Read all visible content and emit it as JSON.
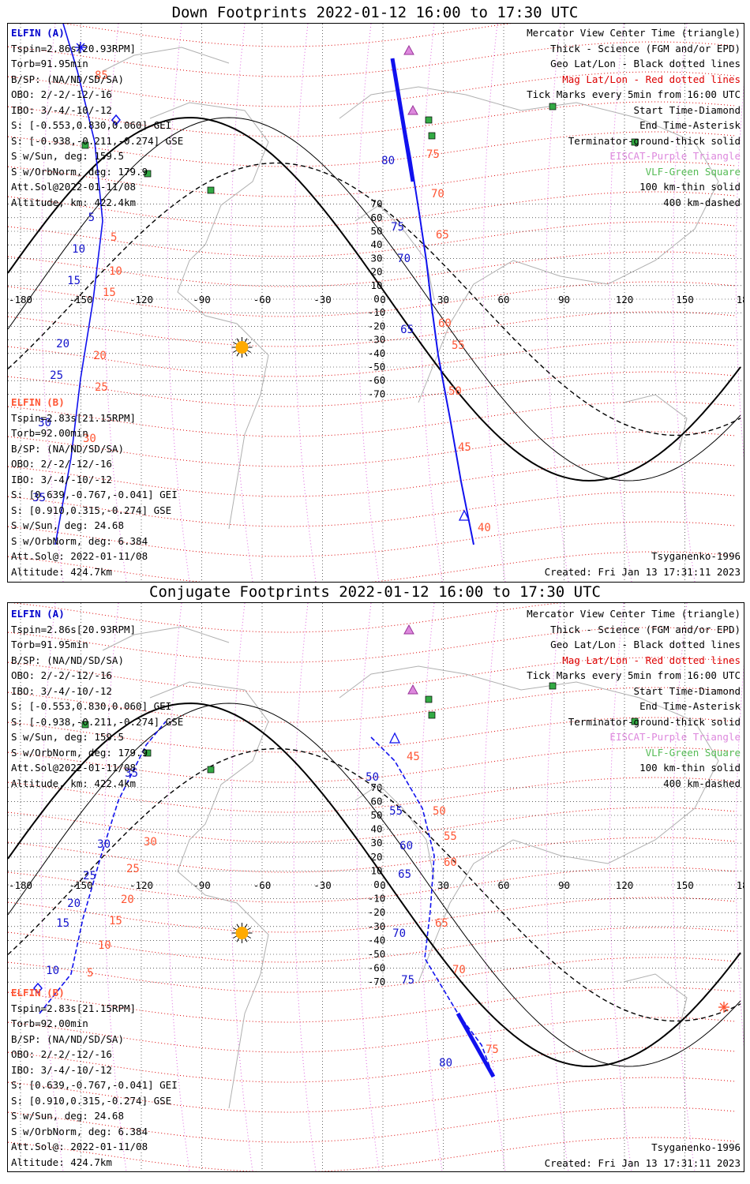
{
  "panels": [
    {
      "id": "down",
      "title": "Down Footprints 2022-01-12 16:00 to 17:30 UTC",
      "elfin_a": {
        "header": "ELFIN (A)",
        "lines": [
          "Tspin=2.86s[20.93RPM]",
          "Torb=91.95min",
          "B/SP: (NA/ND/SD/SA)",
          "OBO: 2/-2/-12/-16",
          "IBO: 3/-4/-10/-12",
          "S: [-0.553,0.830,0.060] GEI",
          "S: [-0.938,-0.211,-0.274] GSE",
          "S w/Sun, deg: 159.5",
          "S w/OrbNorm, deg: 179.9",
          "Att.Sol@2022-01-11/08",
          "Altitude, km: 422.4km"
        ]
      },
      "elfin_b": {
        "header": "ELFIN (B)",
        "lines": [
          "Tspin=2.83s[21.15RPM]",
          "Torb=92.00min",
          "B/SP: (NA/ND/SD/SA)",
          "OBO: 2/-2/-12/-16",
          "IBO: 3/-4/-10/-12",
          "S: [0.639,-0.767,-0.041] GEI",
          "S: [0.910,0.315,-0.274] GSE",
          "S w/Sun, deg: 24.68",
          "S w/OrbNorm, deg: 6.384",
          "Att.Sol@: 2022-01-11/08",
          "Altitude: 424.7km"
        ]
      },
      "legend": [
        "Mercator View Center Time (triangle)",
        "Thick - Science (FGM and/or EPD)",
        "Geo Lat/Lon - Black dotted lines",
        "Mag Lat/Lon - Red dotted lines",
        "Tick Marks every 5min from 16:00 UTC",
        "Start Time-Diamond",
        "End Time-Asterisk",
        "Terminator-ground-thick solid",
        "EISCAT-Purple Triangle",
        "VLF-Green Square",
        "100 km-thin solid",
        "400 km-dashed"
      ],
      "model": "Tsyganenko-1996",
      "created": "Created: Fri Jan 13 17:31:11 2023",
      "lon_ticks": [
        "-180",
        "-150",
        "-120",
        "-90",
        "-60",
        "-30",
        "0",
        "30",
        "60",
        "90",
        "120",
        "150",
        "180"
      ],
      "lat_ticks": [
        "70",
        "60",
        "50",
        "40",
        "30",
        "20",
        "10",
        "0",
        "-10",
        "-20",
        "-30",
        "-40",
        "-50",
        "-60",
        "-70"
      ],
      "track_a_ticks": [
        "5",
        "10",
        "15",
        "20",
        "25",
        "30",
        "35",
        "65",
        "70",
        "75",
        "80"
      ],
      "track_b_ticks": [
        "5",
        "10",
        "15",
        "20",
        "25",
        "30",
        "40",
        "45",
        "50",
        "55",
        "60",
        "65",
        "70",
        "75",
        "85"
      ]
    },
    {
      "id": "conjugate",
      "title": "Conjugate Footprints 2022-01-12 16:00 to 17:30 UTC",
      "elfin_a": {
        "header": "ELFIN (A)",
        "lines": [
          "Tspin=2.86s[20.93RPM]",
          "Torb=91.95min",
          "B/SP: (NA/ND/SD/SA)",
          "OBO: 2/-2/-12/-16",
          "IBO: 3/-4/-10/-12",
          "S: [-0.553,0.830,0.060] GEI",
          "S: [-0.938,-0.211,-0.274] GSE",
          "S w/Sun, deg: 159.5",
          "S w/OrbNorm, deg: 179.9",
          "Att.Sol@2022-01-11/08",
          "Altitude, km: 422.4km"
        ]
      },
      "elfin_b": {
        "header": "ELFIN (B)",
        "lines": [
          "Tspin=2.83s[21.15RPM]",
          "Torb=92.00min",
          "B/SP: (NA/ND/SD/SA)",
          "OBO: 2/-2/-12/-16",
          "IBO: 3/-4/-10/-12",
          "S: [0.639,-0.767,-0.041] GEI",
          "S: [0.910,0.315,-0.274] GSE",
          "S w/Sun, deg: 24.68",
          "S w/OrbNorm, deg: 6.384",
          "Att.Sol@: 2022-01-11/08",
          "Altitude: 424.7km"
        ]
      },
      "legend": [
        "Mercator View Center Time (triangle)",
        "Thick - Science (FGM and/or EPD)",
        "Geo Lat/Lon - Black dotted lines",
        "Mag Lat/Lon - Red dotted lines",
        "Tick Marks every 5min from 16:00 UTC",
        "Start Time-Diamond",
        "End Time-Asterisk",
        "Terminator-ground-thick solid",
        "EISCAT-Purple Triangle",
        "VLF-Green Square",
        "100 km-thin solid",
        "400 km-dashed"
      ],
      "model": "Tsyganenko-1996",
      "created": "Created: Fri Jan 13 17:31:11 2023",
      "lon_ticks": [
        "-180",
        "-150",
        "-120",
        "-90",
        "-60",
        "-30",
        "0",
        "30",
        "60",
        "90",
        "120",
        "150",
        "180"
      ],
      "lat_ticks": [
        "70",
        "60",
        "50",
        "40",
        "30",
        "20",
        "10",
        "0",
        "-10",
        "-20",
        "-30",
        "-40",
        "-50",
        "-60",
        "-70"
      ],
      "track_a_ticks": [
        "10",
        "15",
        "20",
        "25",
        "30",
        "35",
        "50",
        "55",
        "60",
        "65",
        "70",
        "75",
        "80"
      ],
      "track_b_ticks": [
        "5",
        "10",
        "15",
        "20",
        "25",
        "30",
        "45",
        "50",
        "55",
        "60",
        "65",
        "70",
        "75"
      ]
    }
  ],
  "colors": {
    "elfin_a": "#0000cc",
    "elfin_b": "#ff5533",
    "mag_grid": "#dd0000",
    "geo_grid": "#000000",
    "eiscat": "#cc66cc",
    "vlf": "#33aa44",
    "sun": "#ffaa00",
    "coast": "#b0b0b0"
  },
  "icons": [
    "sun-icon",
    "eiscat-triangle-icon",
    "vlf-square-icon",
    "start-diamond-icon",
    "end-asterisk-icon",
    "view-center-triangle-icon"
  ]
}
